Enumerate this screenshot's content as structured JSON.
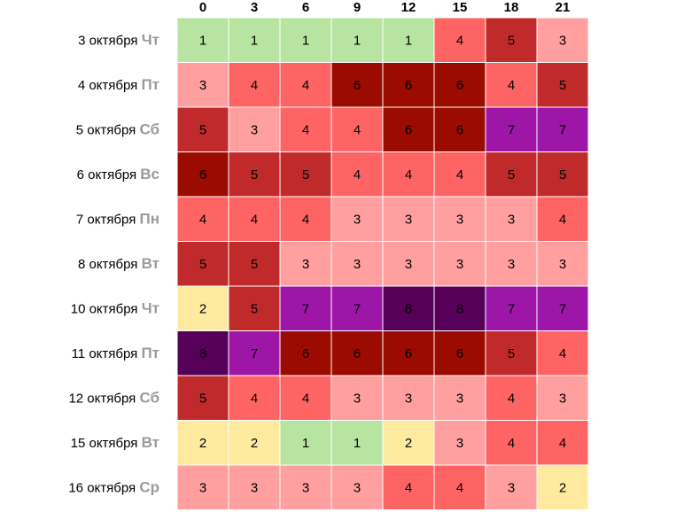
{
  "chart_data": {
    "type": "heatmap",
    "columns": [
      "0",
      "3",
      "6",
      "9",
      "12",
      "15",
      "18",
      "21"
    ],
    "rows": [
      {
        "date": "3 октября",
        "day": "Чт",
        "values": [
          1,
          1,
          1,
          1,
          1,
          4,
          5,
          3
        ]
      },
      {
        "date": "4 октября",
        "day": "Пт",
        "values": [
          3,
          4,
          4,
          6,
          6,
          6,
          4,
          5
        ]
      },
      {
        "date": "5 октября",
        "day": "Сб",
        "values": [
          5,
          3,
          4,
          4,
          6,
          6,
          7,
          7
        ]
      },
      {
        "date": "6 октября",
        "day": "Вс",
        "values": [
          6,
          5,
          5,
          4,
          4,
          4,
          5,
          5
        ]
      },
      {
        "date": "7 октября",
        "day": "Пн",
        "values": [
          4,
          4,
          4,
          3,
          3,
          3,
          3,
          4
        ]
      },
      {
        "date": "8 октября",
        "day": "Вт",
        "values": [
          5,
          5,
          3,
          3,
          3,
          3,
          3,
          3
        ]
      },
      {
        "date": "10 октября",
        "day": "Чт",
        "values": [
          2,
          5,
          7,
          7,
          8,
          8,
          7,
          7
        ]
      },
      {
        "date": "11 октября",
        "day": "Пт",
        "values": [
          8,
          7,
          6,
          6,
          6,
          6,
          5,
          4
        ]
      },
      {
        "date": "12 октября",
        "day": "Сб",
        "values": [
          5,
          4,
          4,
          3,
          3,
          3,
          4,
          3
        ]
      },
      {
        "date": "15 октября",
        "day": "Вт",
        "values": [
          2,
          2,
          1,
          1,
          2,
          3,
          4,
          4
        ]
      },
      {
        "date": "16 октября",
        "day": "Ср",
        "values": [
          3,
          3,
          3,
          3,
          4,
          4,
          3,
          2
        ]
      }
    ],
    "value_range": [
      1,
      8
    ],
    "color_scale": {
      "1": "#b7e4a1",
      "2": "#ffeb9f",
      "3": "#ff9f9f",
      "4": "#ff6464",
      "5": "#c02a2a",
      "6": "#9b0b00",
      "7": "#9e16a8",
      "8": "#560059"
    },
    "legend": "none"
  }
}
